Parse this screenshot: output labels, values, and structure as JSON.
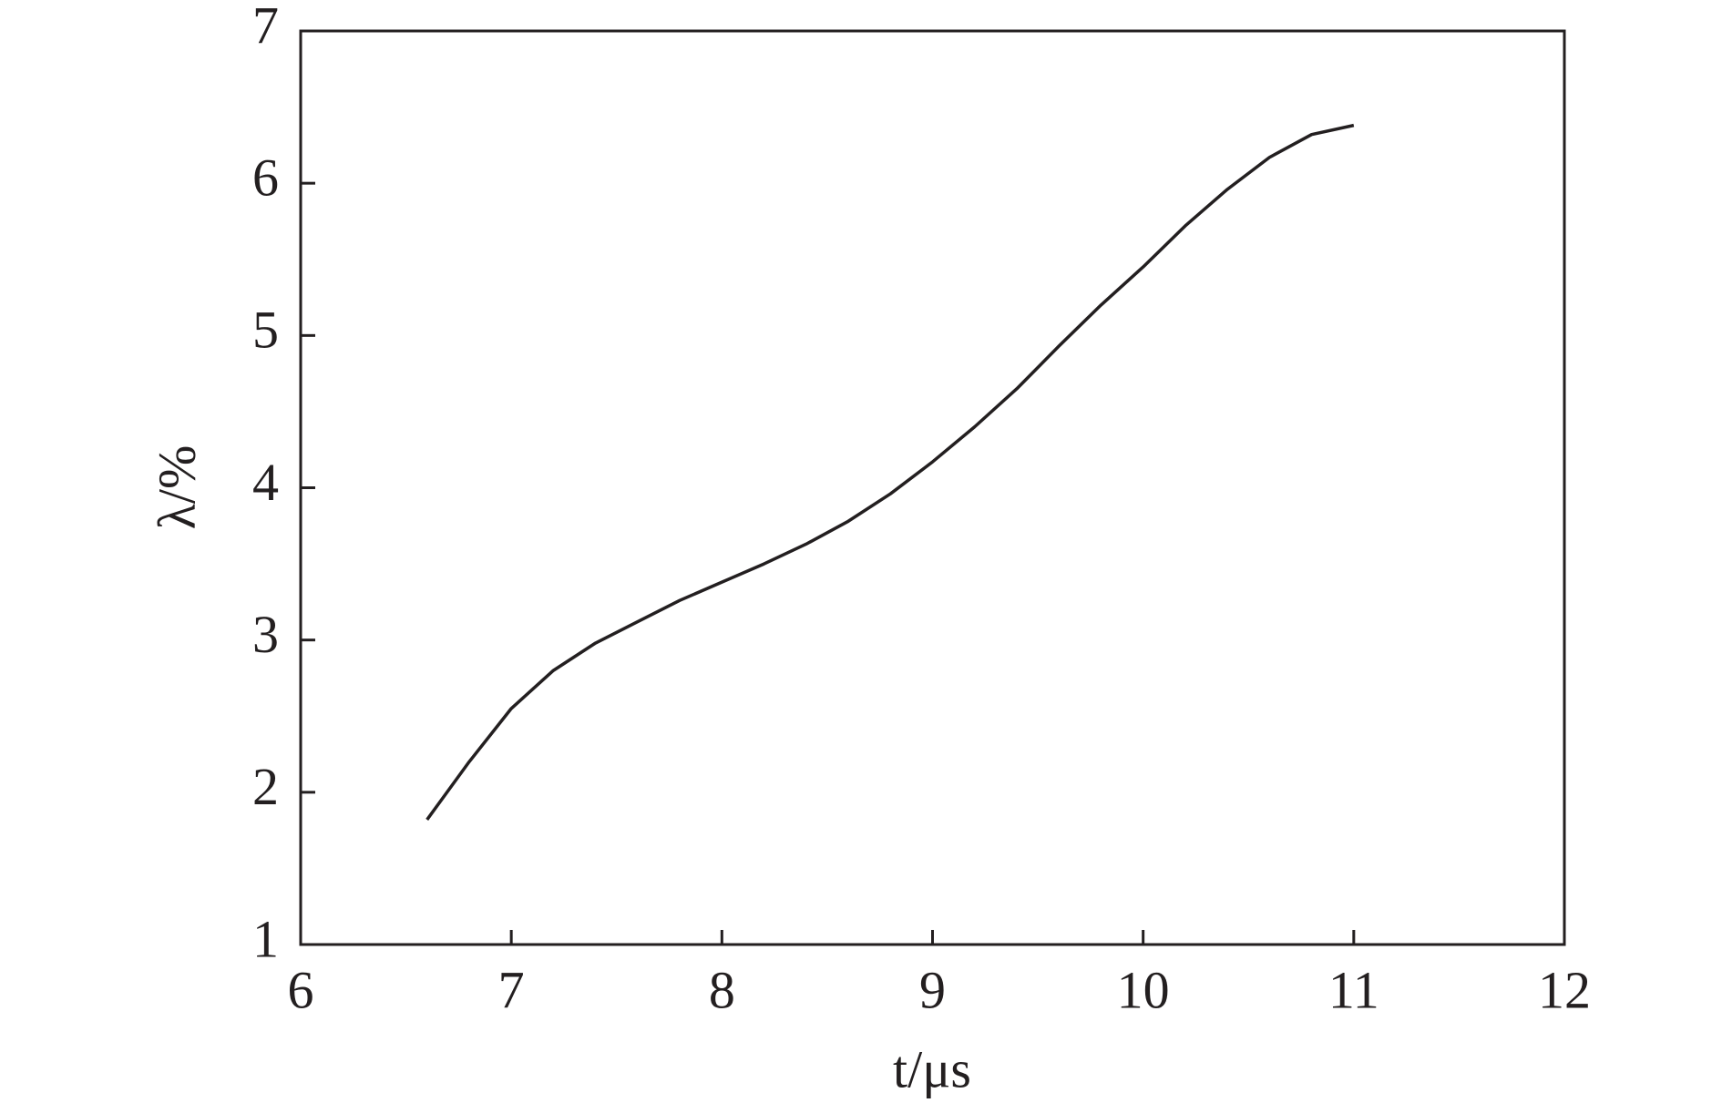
{
  "chart_data": {
    "type": "line",
    "x_label": "t/μs",
    "y_label": "λ/%",
    "x": [
      6.6,
      6.8,
      7.0,
      7.2,
      7.4,
      7.6,
      7.8,
      8.0,
      8.2,
      8.4,
      8.6,
      8.8,
      9.0,
      9.2,
      9.4,
      9.6,
      9.8,
      10.0,
      10.2,
      10.4,
      10.6,
      10.8,
      11.0
    ],
    "series": [
      {
        "color": "#231f20",
        "values": [
          1.82,
          2.2,
          2.55,
          2.8,
          2.98,
          3.12,
          3.26,
          3.38,
          3.5,
          3.63,
          3.78,
          3.96,
          4.17,
          4.4,
          4.65,
          4.93,
          5.2,
          5.45,
          5.72,
          5.96,
          6.17,
          6.32,
          6.38
        ]
      }
    ],
    "xlim": [
      6,
      12
    ],
    "xticks": [
      6,
      7,
      8,
      9,
      10,
      11,
      12
    ],
    "ylim": [
      1,
      7
    ],
    "yticks": [
      1,
      2,
      3,
      4,
      5,
      6,
      7
    ],
    "grid": false
  }
}
